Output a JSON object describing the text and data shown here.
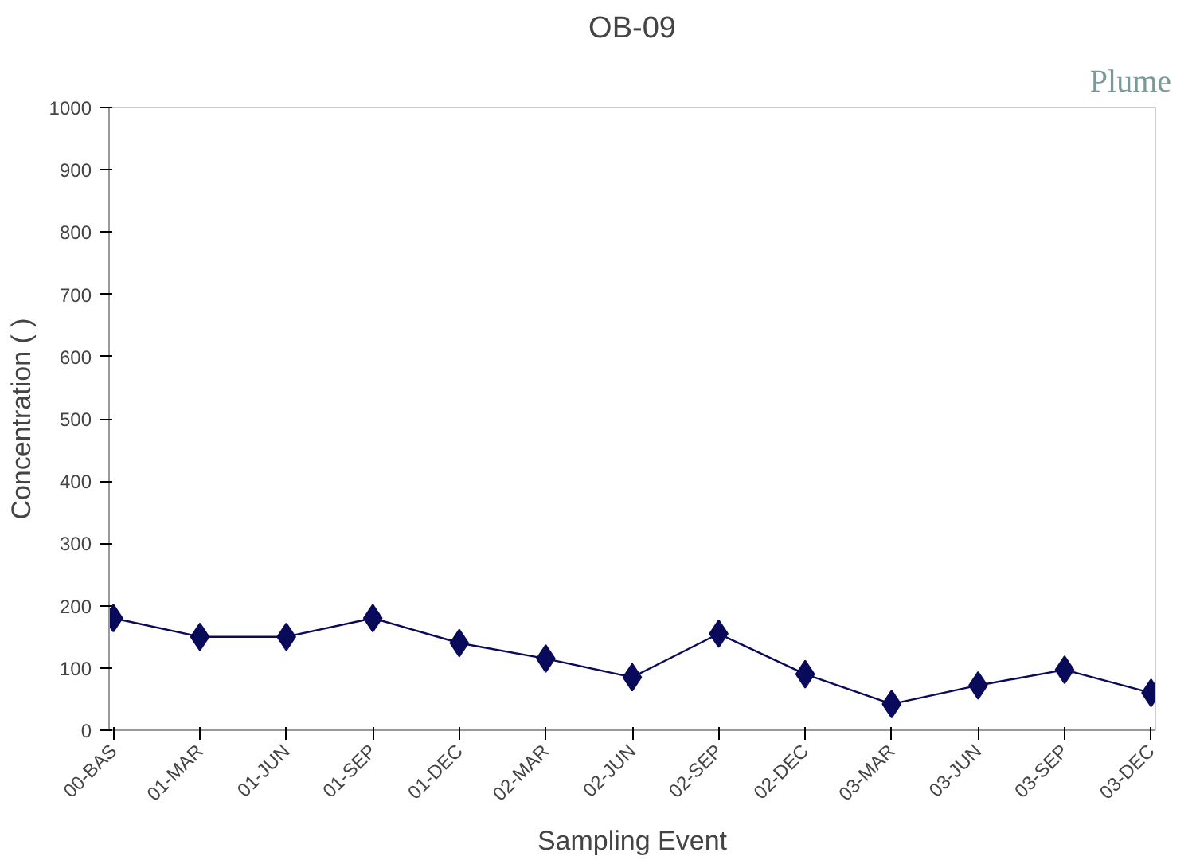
{
  "chart_data": {
    "type": "line",
    "title": "OB-09",
    "xlabel": "Sampling Event",
    "ylabel": "Concentration ( )",
    "annotations": [
      "Plume"
    ],
    "categories": [
      "00-BAS",
      "01-MAR",
      "01-JUN",
      "01-SEP",
      "01-DEC",
      "02-MAR",
      "02-JUN",
      "02-SEP",
      "02-DEC",
      "03-MAR",
      "03-JUN",
      "03-SEP",
      "03-DEC"
    ],
    "series": [
      {
        "color": "#0a0a5a",
        "values": [
          180,
          150,
          150,
          180,
          140,
          115,
          85,
          155,
          90,
          42,
          72,
          97,
          60
        ]
      }
    ],
    "ylim": [
      0,
      1000
    ],
    "yticks": [
      0,
      100,
      200,
      300,
      400,
      500,
      600,
      700,
      800,
      900,
      1000
    ],
    "grid": false,
    "marker": "diamond",
    "line_style": "solid"
  }
}
